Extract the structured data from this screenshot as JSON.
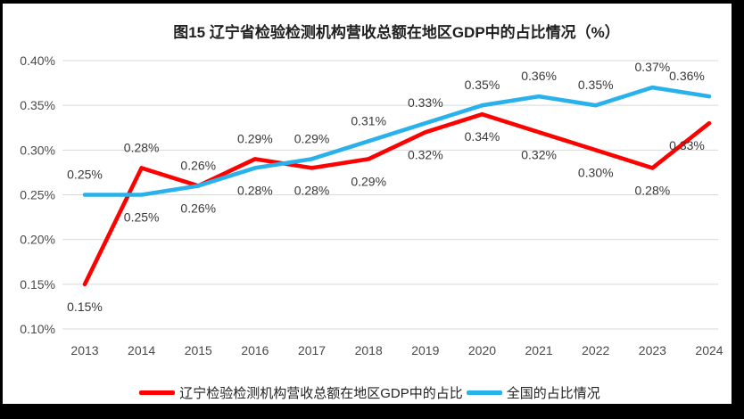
{
  "window": {
    "frame_border_color": "#000000",
    "panel_background": "#ffffff"
  },
  "chart_data": {
    "type": "line",
    "title": "图15 辽宁省检验检测机构营收总额在地区GDP中的占比情况（%）",
    "xlabel": "",
    "ylabel": "",
    "x": [
      "2013",
      "2014",
      "2015",
      "2016",
      "2017",
      "2018",
      "2019",
      "2020",
      "2021",
      "2022",
      "2023",
      "2024"
    ],
    "ylim": [
      0.1,
      0.4
    ],
    "y_ticks": {
      "values": [
        0.1,
        0.15,
        0.2,
        0.25,
        0.3,
        0.35,
        0.4
      ],
      "labels": [
        "0.10%",
        "0.15%",
        "0.20%",
        "0.25%",
        "0.30%",
        "0.35%",
        "0.40%"
      ]
    },
    "grid": true,
    "gridline_color": "#d9d9d9",
    "legend_position": "bottom",
    "series": [
      {
        "name": "辽宁检验检测机构营收总额在地区GDP中的占比",
        "color": "#fe0000",
        "values": [
          0.15,
          0.28,
          0.26,
          0.29,
          0.28,
          0.29,
          0.32,
          0.34,
          0.32,
          0.3,
          0.28,
          0.33
        ],
        "labels": [
          "0.15%",
          "0.28%",
          "0.26%",
          "0.29%",
          "0.28%",
          "0.29%",
          "0.32%",
          "0.34%",
          "0.32%",
          "0.30%",
          "0.28%",
          "0.33%"
        ],
        "label_side": [
          "below",
          "above",
          "above",
          "above",
          "below",
          "below",
          "below",
          "below",
          "below",
          "below",
          "below",
          "below"
        ]
      },
      {
        "name": "全国的占比情况",
        "color": "#29b1ec",
        "values": [
          0.25,
          0.25,
          0.26,
          0.28,
          0.29,
          0.31,
          0.33,
          0.35,
          0.36,
          0.35,
          0.37,
          0.36
        ],
        "labels": [
          "0.25%",
          "0.25%",
          "0.26%",
          "0.28%",
          "0.29%",
          "0.31%",
          "0.33%",
          "0.35%",
          "0.36%",
          "0.35%",
          "0.37%",
          "0.36%"
        ],
        "label_side": [
          "above",
          "below",
          "below",
          "below",
          "above",
          "above",
          "above",
          "above",
          "above",
          "above",
          "above",
          "above"
        ]
      }
    ]
  }
}
